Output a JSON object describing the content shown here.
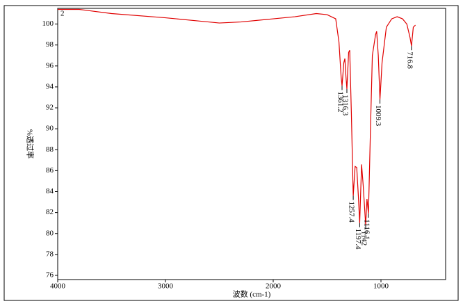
{
  "chart_data": {
    "type": "line",
    "x_label": "波数 (cm-1)",
    "y_label": "%透过率",
    "x": [
      4000,
      3800,
      3500,
      3000,
      2700,
      2500,
      2300,
      2000,
      1800,
      1600,
      1500,
      1420,
      1390,
      1370,
      1361.2,
      1345,
      1335,
      1325,
      1316.3,
      1300,
      1290,
      1275,
      1257.4,
      1240,
      1225,
      1210,
      1197.4,
      1180,
      1165,
      1142,
      1130,
      1116.1,
      1100,
      1080,
      1050,
      1040,
      1025,
      1009.3,
      990,
      950,
      900,
      850,
      800,
      760,
      730,
      716.8,
      700,
      680
    ],
    "series": [
      {
        "name": "2",
        "color": "#e00000",
        "values": [
          101.4,
          101.4,
          101.0,
          100.6,
          100.3,
          100.1,
          100.2,
          100.5,
          100.7,
          101.0,
          100.9,
          100.5,
          98.3,
          95.0,
          94.1,
          96.3,
          96.7,
          95.0,
          93.8,
          97.3,
          97.5,
          91.6,
          83.6,
          86.4,
          86.3,
          83.6,
          81.0,
          86.6,
          84.6,
          80.8,
          83.3,
          81.9,
          88.9,
          97.0,
          99.0,
          99.3,
          97.0,
          92.8,
          96.3,
          99.7,
          100.5,
          100.7,
          100.5,
          100.0,
          98.7,
          97.9,
          99.7,
          99.9
        ]
      }
    ],
    "annotations": [
      {
        "label": "1361.2",
        "x": 1361.2,
        "y": 94.1
      },
      {
        "label": "1316.3",
        "x": 1316.3,
        "y": 93.8
      },
      {
        "label": "1257.4",
        "x": 1257.4,
        "y": 83.6
      },
      {
        "label": "1197.4",
        "x": 1197.4,
        "y": 81.0
      },
      {
        "label": "1142",
        "x": 1142,
        "y": 80.8
      },
      {
        "label": "1116.1",
        "x": 1116.1,
        "y": 81.9
      },
      {
        "label": "1009.3",
        "x": 1009.3,
        "y": 92.8
      },
      {
        "label": "716.8",
        "x": 716.8,
        "y": 97.9
      }
    ],
    "xlim": [
      4000,
      400
    ],
    "xticks": [
      4000,
      3000,
      2000,
      1000
    ],
    "ylim": [
      75.6,
      101.5
    ],
    "yticks": [
      76,
      78,
      80,
      82,
      84,
      86,
      88,
      90,
      92,
      94,
      96,
      98,
      100
    ]
  }
}
